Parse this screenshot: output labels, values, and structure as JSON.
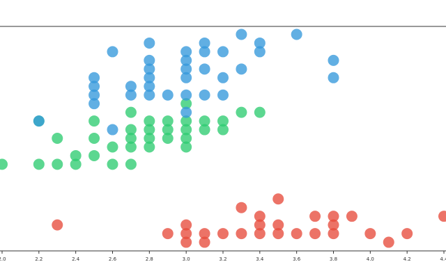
{
  "chart_data": {
    "type": "scatter",
    "title": "",
    "xlabel": "",
    "ylabel": "",
    "xlim": [
      2.0,
      4.4
    ],
    "ylim": [
      0.0,
      2.6
    ],
    "grid": false,
    "x_ticks": [
      "2.0",
      "2.2",
      "2.4",
      "2.6",
      "2.8",
      "3.0",
      "3.2",
      "3.4",
      "3.6",
      "3.8",
      "4.0",
      "4.2",
      "4.4"
    ],
    "series": [
      {
        "color": "#e74c3c",
        "points": [
          [
            2.3,
            0.3
          ],
          [
            2.9,
            0.2
          ],
          [
            3.0,
            0.1
          ],
          [
            3.0,
            0.2
          ],
          [
            3.0,
            0.3
          ],
          [
            3.1,
            0.1
          ],
          [
            3.1,
            0.2
          ],
          [
            3.2,
            0.2
          ],
          [
            3.3,
            0.2
          ],
          [
            3.3,
            0.5
          ],
          [
            3.4,
            0.2
          ],
          [
            3.4,
            0.3
          ],
          [
            3.4,
            0.4
          ],
          [
            3.5,
            0.2
          ],
          [
            3.5,
            0.3
          ],
          [
            3.5,
            0.6
          ],
          [
            3.6,
            0.2
          ],
          [
            3.7,
            0.2
          ],
          [
            3.7,
            0.4
          ],
          [
            3.8,
            0.2
          ],
          [
            3.8,
            0.3
          ],
          [
            3.8,
            0.4
          ],
          [
            3.9,
            0.4
          ],
          [
            4.0,
            0.2
          ],
          [
            4.1,
            0.1
          ],
          [
            4.2,
            0.2
          ],
          [
            4.4,
            0.4
          ]
        ]
      },
      {
        "color": "#2ecc71",
        "points": [
          [
            2.0,
            1.0
          ],
          [
            2.2,
            1.0
          ],
          [
            2.2,
            1.5
          ],
          [
            2.3,
            1.0
          ],
          [
            2.3,
            1.3
          ],
          [
            2.4,
            1.0
          ],
          [
            2.4,
            1.1
          ],
          [
            2.5,
            1.1
          ],
          [
            2.5,
            1.3
          ],
          [
            2.5,
            1.5
          ],
          [
            2.6,
            1.0
          ],
          [
            2.6,
            1.2
          ],
          [
            2.7,
            1.0
          ],
          [
            2.7,
            1.2
          ],
          [
            2.7,
            1.3
          ],
          [
            2.7,
            1.4
          ],
          [
            2.7,
            1.6
          ],
          [
            2.8,
            1.2
          ],
          [
            2.8,
            1.3
          ],
          [
            2.8,
            1.4
          ],
          [
            2.8,
            1.5
          ],
          [
            2.9,
            1.3
          ],
          [
            2.9,
            1.4
          ],
          [
            2.9,
            1.5
          ],
          [
            3.0,
            1.2
          ],
          [
            3.0,
            1.3
          ],
          [
            3.0,
            1.4
          ],
          [
            3.0,
            1.5
          ],
          [
            3.0,
            1.7
          ],
          [
            3.1,
            1.4
          ],
          [
            3.1,
            1.5
          ],
          [
            3.2,
            1.4
          ],
          [
            3.2,
            1.5
          ],
          [
            3.3,
            1.6
          ],
          [
            3.4,
            1.6
          ]
        ]
      },
      {
        "color": "#3498db",
        "points": [
          [
            2.2,
            1.5
          ],
          [
            2.5,
            1.7
          ],
          [
            2.5,
            1.8
          ],
          [
            2.5,
            1.9
          ],
          [
            2.5,
            2.0
          ],
          [
            2.6,
            1.4
          ],
          [
            2.6,
            2.3
          ],
          [
            2.7,
            1.8
          ],
          [
            2.7,
            1.9
          ],
          [
            2.8,
            1.8
          ],
          [
            2.8,
            1.9
          ],
          [
            2.8,
            2.0
          ],
          [
            2.8,
            2.1
          ],
          [
            2.8,
            2.2
          ],
          [
            2.8,
            2.4
          ],
          [
            2.9,
            1.8
          ],
          [
            3.0,
            1.6
          ],
          [
            3.0,
            1.8
          ],
          [
            3.0,
            2.0
          ],
          [
            3.0,
            2.1
          ],
          [
            3.0,
            2.2
          ],
          [
            3.0,
            2.3
          ],
          [
            3.1,
            1.8
          ],
          [
            3.1,
            2.1
          ],
          [
            3.1,
            2.3
          ],
          [
            3.1,
            2.4
          ],
          [
            3.2,
            1.8
          ],
          [
            3.2,
            2.0
          ],
          [
            3.2,
            2.3
          ],
          [
            3.3,
            2.1
          ],
          [
            3.3,
            2.5
          ],
          [
            3.4,
            2.3
          ],
          [
            3.4,
            2.4
          ],
          [
            3.6,
            2.5
          ],
          [
            3.8,
            2.0
          ],
          [
            3.8,
            2.2
          ]
        ]
      }
    ]
  }
}
